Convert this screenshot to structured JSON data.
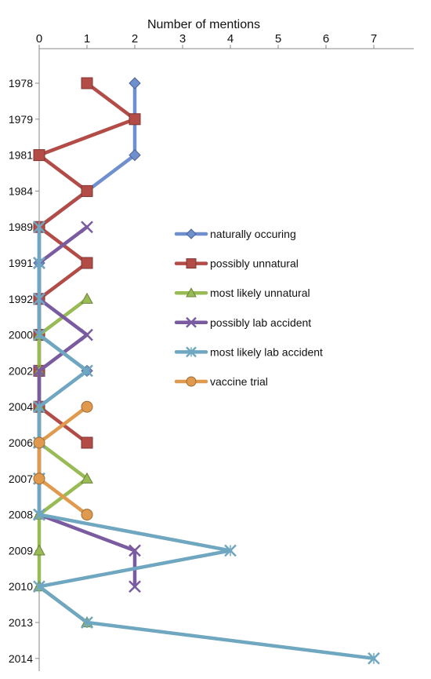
{
  "chart_data": {
    "type": "line",
    "title": "",
    "xlabel": "Number of mentions",
    "ylabel": "",
    "xlim": [
      0,
      8
    ],
    "xticks": [
      "0",
      "1",
      "2",
      "3",
      "4",
      "5",
      "6",
      "7"
    ],
    "categories": [
      "1978",
      "1979",
      "1981",
      "1984",
      "1989",
      "1991",
      "1992",
      "2000",
      "2002",
      "2004",
      "2006",
      "2007",
      "2008",
      "2009",
      "2010",
      "2013",
      "2014"
    ],
    "grid": false,
    "legend_position": "right",
    "series": [
      {
        "name": "naturally occuring",
        "color": "#6f8fcf",
        "marker": "diamond",
        "points": [
          [
            "1978",
            2
          ],
          [
            "1979",
            2
          ],
          [
            "1981",
            2
          ],
          [
            "1984",
            1
          ],
          [
            "1989",
            0
          ],
          [
            "1991",
            0
          ],
          [
            "1992",
            0
          ],
          [
            "2000",
            0
          ],
          [
            "2002",
            1
          ]
        ]
      },
      {
        "name": "possibly unnatural",
        "color": "#b34b47",
        "marker": "square",
        "points": [
          [
            "1978",
            1
          ],
          [
            "1979",
            2
          ],
          [
            "1981",
            0
          ],
          [
            "1984",
            1
          ],
          [
            "1989",
            0
          ],
          [
            "1991",
            1
          ],
          [
            "1992",
            0
          ],
          [
            "2000",
            0
          ],
          [
            "2002",
            0
          ],
          [
            "2004",
            0
          ],
          [
            "2006",
            1
          ]
        ]
      },
      {
        "name": "most likely unnatural",
        "color": "#99bb55",
        "marker": "triangle",
        "points": [
          [
            "1992",
            1
          ],
          [
            "2000",
            0
          ],
          [
            "2002",
            0
          ],
          [
            "2004",
            0
          ],
          [
            "2006",
            0
          ],
          [
            "2007",
            1
          ],
          [
            "2008",
            0
          ],
          [
            "2009",
            0
          ],
          [
            "2010",
            0
          ],
          [
            "2013",
            1
          ]
        ]
      },
      {
        "name": "possibly lab accident",
        "color": "#7a5ba0",
        "marker": "x",
        "points": [
          [
            "1989",
            1
          ],
          [
            "1991",
            0
          ],
          [
            "1992",
            0
          ],
          [
            "2000",
            1
          ],
          [
            "2002",
            0
          ],
          [
            "2004",
            0
          ],
          [
            "2006",
            0
          ],
          [
            "2007",
            0
          ],
          [
            "2008",
            0
          ],
          [
            "2009",
            2
          ],
          [
            "2010",
            2
          ]
        ]
      },
      {
        "name": "most likely lab accident",
        "color": "#6fa7c1",
        "marker": "star",
        "points": [
          [
            "1989",
            0
          ],
          [
            "1991",
            0
          ],
          [
            "1992",
            0
          ],
          [
            "2000",
            0
          ],
          [
            "2002",
            1
          ],
          [
            "2004",
            0
          ],
          [
            "2006",
            0
          ],
          [
            "2007",
            0
          ],
          [
            "2008",
            0
          ],
          [
            "2009",
            4
          ],
          [
            "2010",
            0
          ],
          [
            "2013",
            1
          ],
          [
            "2014",
            7
          ]
        ]
      },
      {
        "name": "vaccine trial",
        "color": "#e09a4d",
        "marker": "circle",
        "points": [
          [
            "2004",
            1
          ],
          [
            "2006",
            0
          ],
          [
            "2007",
            0
          ],
          [
            "2008",
            1
          ]
        ]
      }
    ]
  }
}
